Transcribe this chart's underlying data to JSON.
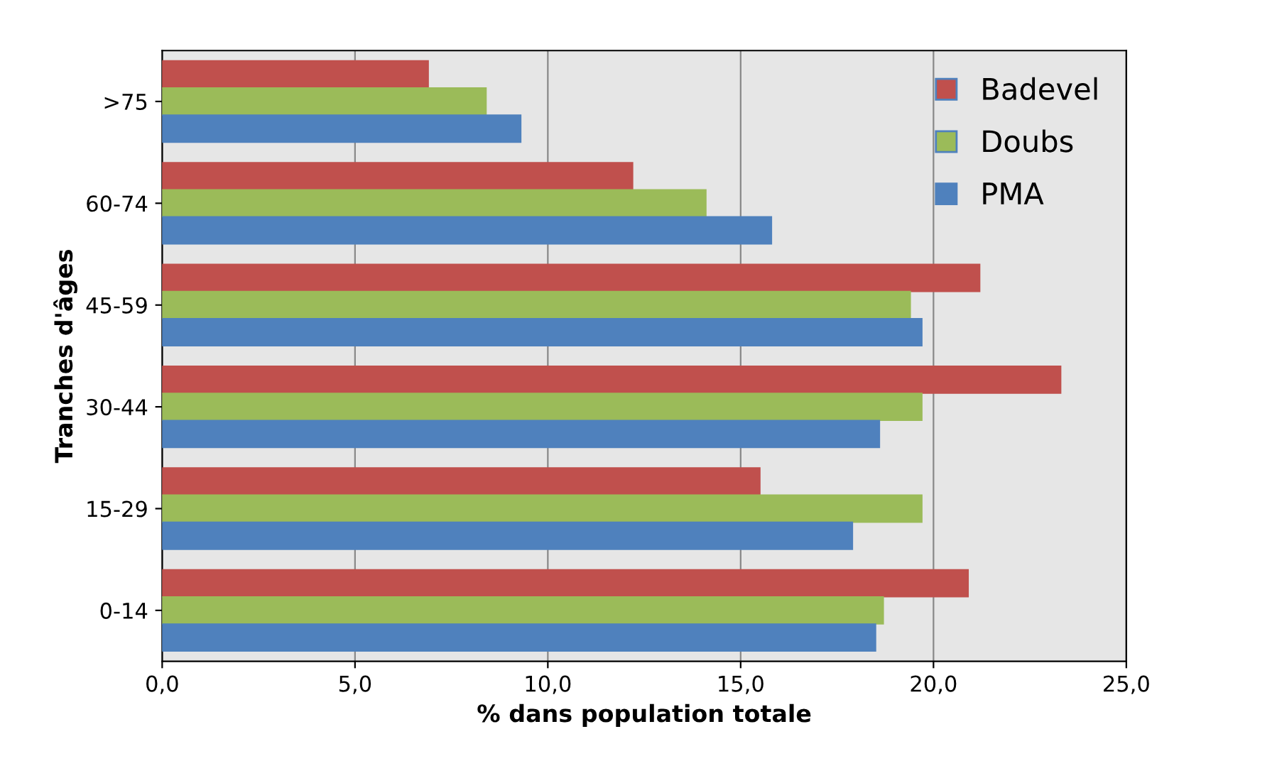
{
  "chart_data": {
    "type": "bar",
    "orientation": "horizontal",
    "xlabel": "% dans population totale",
    "ylabel": "Tranches d'âges",
    "categories": [
      ">75",
      "60-74",
      "45-59",
      "30-44",
      "15-29",
      "0-14"
    ],
    "series": [
      {
        "name": "Badevel",
        "color": "#c0504d",
        "values": [
          6.9,
          12.2,
          21.2,
          23.3,
          15.5,
          20.9
        ]
      },
      {
        "name": "Doubs",
        "color": "#9bbb59",
        "values": [
          8.4,
          14.1,
          19.4,
          19.7,
          19.7,
          18.7
        ]
      },
      {
        "name": "PMA",
        "color": "#4f81bd",
        "values": [
          9.3,
          15.8,
          19.7,
          18.6,
          17.9,
          18.5
        ]
      }
    ],
    "xlim": [
      0,
      25
    ],
    "xticks": [
      {
        "value": 0,
        "label": "0,0"
      },
      {
        "value": 5,
        "label": "5,0"
      },
      {
        "value": 10,
        "label": "10,0"
      },
      {
        "value": 15,
        "label": "15,0"
      },
      {
        "value": 20,
        "label": "20,0"
      },
      {
        "value": 25,
        "label": "25,0"
      }
    ],
    "grid": "x",
    "legend": "top right"
  }
}
